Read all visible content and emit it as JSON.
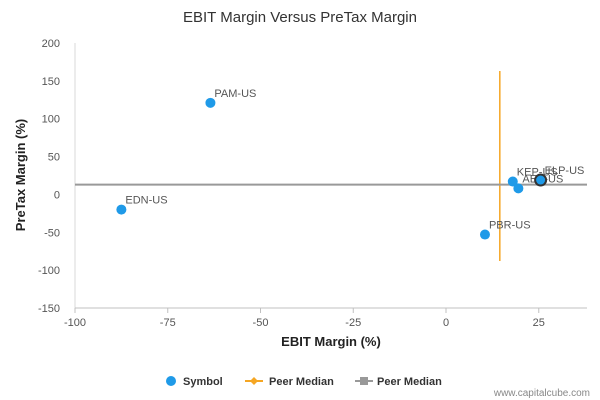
{
  "chart_data": {
    "type": "scatter",
    "title": "EBIT Margin Versus PreTax Margin",
    "xlabel": "EBIT Margin (%)",
    "ylabel": "PreTax Margin (%)",
    "xlim": [
      -100,
      38
    ],
    "ylim": [
      -150,
      200
    ],
    "xticks": [
      -100,
      -75,
      -50,
      -25,
      0,
      25
    ],
    "yticks": [
      -150,
      -100,
      -50,
      0,
      50,
      100,
      150,
      200
    ],
    "grid": false,
    "legend_position": "bottom",
    "points": [
      {
        "label": "PAM-US",
        "x": -63.5,
        "y": 121
      },
      {
        "label": "EDN-US",
        "x": -87.5,
        "y": -20
      },
      {
        "label": "PBR-US",
        "x": 10.5,
        "y": -53
      },
      {
        "label": "KEP-US",
        "x": 18,
        "y": 17
      },
      {
        "label": "AES-US",
        "x": 19.5,
        "y": 8
      },
      {
        "label": "ELP-US",
        "x": 25.5,
        "y": 19
      }
    ],
    "highlighted_point": "ELP-US",
    "peer_median_x": 14.5,
    "peer_median_y": 13,
    "peer_median_x_range": [
      -88,
      163
    ],
    "legend": [
      "Symbol",
      "Peer Median",
      "Peer Median"
    ],
    "colors": {
      "symbol": "#1f9ae8",
      "peer_median_x": "#f5a623",
      "peer_median_y": "#999999"
    }
  },
  "credit": "www.capitalcube.com"
}
